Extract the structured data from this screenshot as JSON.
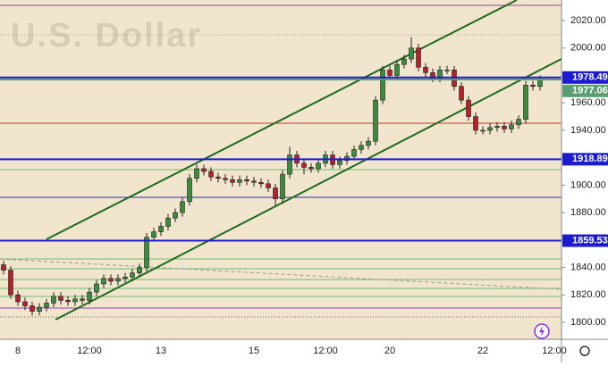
{
  "chart_data": {
    "type": "candlestick",
    "title": "U.S. Dollar",
    "categories": [
      null,
      null,
      "8",
      null,
      null,
      null,
      null,
      null,
      null,
      null,
      null,
      null,
      "12:00",
      null,
      null,
      null,
      null,
      null,
      null,
      null,
      null,
      null,
      "13",
      null,
      null,
      null,
      null,
      null,
      null,
      null,
      null,
      null,
      null,
      null,
      null,
      "15",
      null,
      null,
      null,
      null,
      null,
      null,
      null,
      null,
      null,
      "12:00",
      null,
      null,
      null,
      null,
      null,
      null,
      null,
      null,
      "20",
      null,
      null,
      null,
      null,
      null,
      null,
      null,
      null,
      null,
      null,
      null,
      null,
      "22",
      null,
      null,
      null,
      null,
      null,
      null,
      null,
      null,
      null,
      "12:00"
    ],
    "open": [
      1842,
      1838,
      1820,
      1815,
      1812,
      1808,
      1811,
      1814,
      1819,
      1816,
      1815,
      1817,
      1816,
      1822,
      1828,
      1832,
      1830,
      1832,
      1833,
      1836,
      1840,
      1862,
      1866,
      1870,
      1876,
      1880,
      1888,
      1905,
      1912,
      1910,
      1906,
      1905,
      1904,
      1902,
      1904,
      1903,
      1902,
      1901,
      1898,
      1890,
      1908,
      1922,
      1916,
      1913,
      1912,
      1916,
      1922,
      1915,
      1918,
      1921,
      1926,
      1929,
      1932,
      1962,
      1984,
      1980,
      1988,
      1992,
      2000,
      1986,
      1982,
      1978,
      1984,
      1984,
      1972,
      1962,
      1950,
      1940,
      1940,
      1942,
      1943,
      1941,
      1944,
      1948,
      1973,
      1972,
      null,
      null
    ],
    "high": [
      1845,
      1841,
      1823,
      1818,
      1815,
      1814,
      1817,
      1822,
      1822,
      1819,
      1820,
      1820,
      1825,
      1831,
      1835,
      1835,
      1835,
      1836,
      1839,
      1843,
      1865,
      1869,
      1873,
      1879,
      1883,
      1891,
      1908,
      1915,
      1915,
      1913,
      1909,
      1908,
      1907,
      1907,
      1907,
      1906,
      1905,
      1904,
      1901,
      1911,
      1928,
      1925,
      1919,
      1916,
      1919,
      1925,
      1925,
      1921,
      1924,
      1929,
      1932,
      1935,
      1965,
      1987,
      1987,
      1991,
      1995,
      2008,
      2003,
      1989,
      1985,
      1987,
      1987,
      1987,
      1975,
      1965,
      1953,
      1943,
      1945,
      1946,
      1946,
      1947,
      1951,
      1976,
      1976,
      1980,
      null,
      null
    ],
    "low": [
      1835,
      1817,
      1812,
      1809,
      1805,
      1805,
      1808,
      1811,
      1813,
      1812,
      1812,
      1813,
      1813,
      1819,
      1825,
      1827,
      1827,
      1829,
      1830,
      1833,
      1837,
      1859,
      1863,
      1867,
      1873,
      1877,
      1885,
      1902,
      1907,
      1903,
      1902,
      1901,
      1899,
      1899,
      1900,
      1899,
      1898,
      1895,
      1885,
      1887,
      1905,
      1913,
      1908,
      1909,
      1909,
      1913,
      1912,
      1912,
      1915,
      1918,
      1923,
      1926,
      1929,
      1959,
      1977,
      1977,
      1985,
      1989,
      1983,
      1979,
      1975,
      1975,
      1981,
      1969,
      1959,
      1947,
      1937,
      1937,
      1937,
      1939,
      1938,
      1938,
      1941,
      1945,
      1969,
      1969,
      null,
      null
    ],
    "close": [
      1838,
      1820,
      1815,
      1812,
      1808,
      1811,
      1814,
      1819,
      1816,
      1815,
      1817,
      1816,
      1822,
      1828,
      1832,
      1830,
      1832,
      1833,
      1836,
      1840,
      1862,
      1866,
      1870,
      1876,
      1880,
      1888,
      1905,
      1912,
      1910,
      1906,
      1905,
      1904,
      1902,
      1904,
      1903,
      1902,
      1901,
      1898,
      1890,
      1908,
      1922,
      1916,
      1913,
      1912,
      1916,
      1922,
      1915,
      1918,
      1921,
      1926,
      1929,
      1932,
      1962,
      1984,
      1980,
      1988,
      1992,
      2000,
      1986,
      1982,
      1978,
      1984,
      1984,
      1972,
      1962,
      1950,
      1940,
      1940,
      1942,
      1943,
      1941,
      1944,
      1948,
      1973,
      1972,
      1977.06,
      null,
      null
    ],
    "up_color": "#3c8a3c",
    "down_color": "#b3222b",
    "ylim": [
      1787.6,
      2035
    ],
    "yticks": [
      {
        "value": 1800,
        "label": "1800.00"
      },
      {
        "value": 1820,
        "label": "1820.00"
      },
      {
        "value": 1840,
        "label": "1840.00"
      },
      {
        "value": 1860,
        "label": "1860.00"
      },
      {
        "value": 1880,
        "label": "1880.00"
      },
      {
        "value": 1900,
        "label": "1900.00"
      },
      {
        "value": 1920,
        "label": "1920.00"
      },
      {
        "value": 1940,
        "label": "1940.00"
      },
      {
        "value": 1960,
        "label": "1960.00"
      },
      {
        "value": 1980,
        "label": "1980.00"
      },
      {
        "value": 2000,
        "label": "2000.00"
      },
      {
        "value": 2020,
        "label": "2020.00"
      }
    ],
    "levels": [
      {
        "value": 1978.49,
        "color": "#1b1bd0"
      },
      {
        "value": 1977.06,
        "color": "#5a9e72"
      },
      {
        "value": 1918.89,
        "color": "#1b1bd0"
      },
      {
        "value": 1859.53,
        "color": "#1b1bd0"
      }
    ]
  }
}
